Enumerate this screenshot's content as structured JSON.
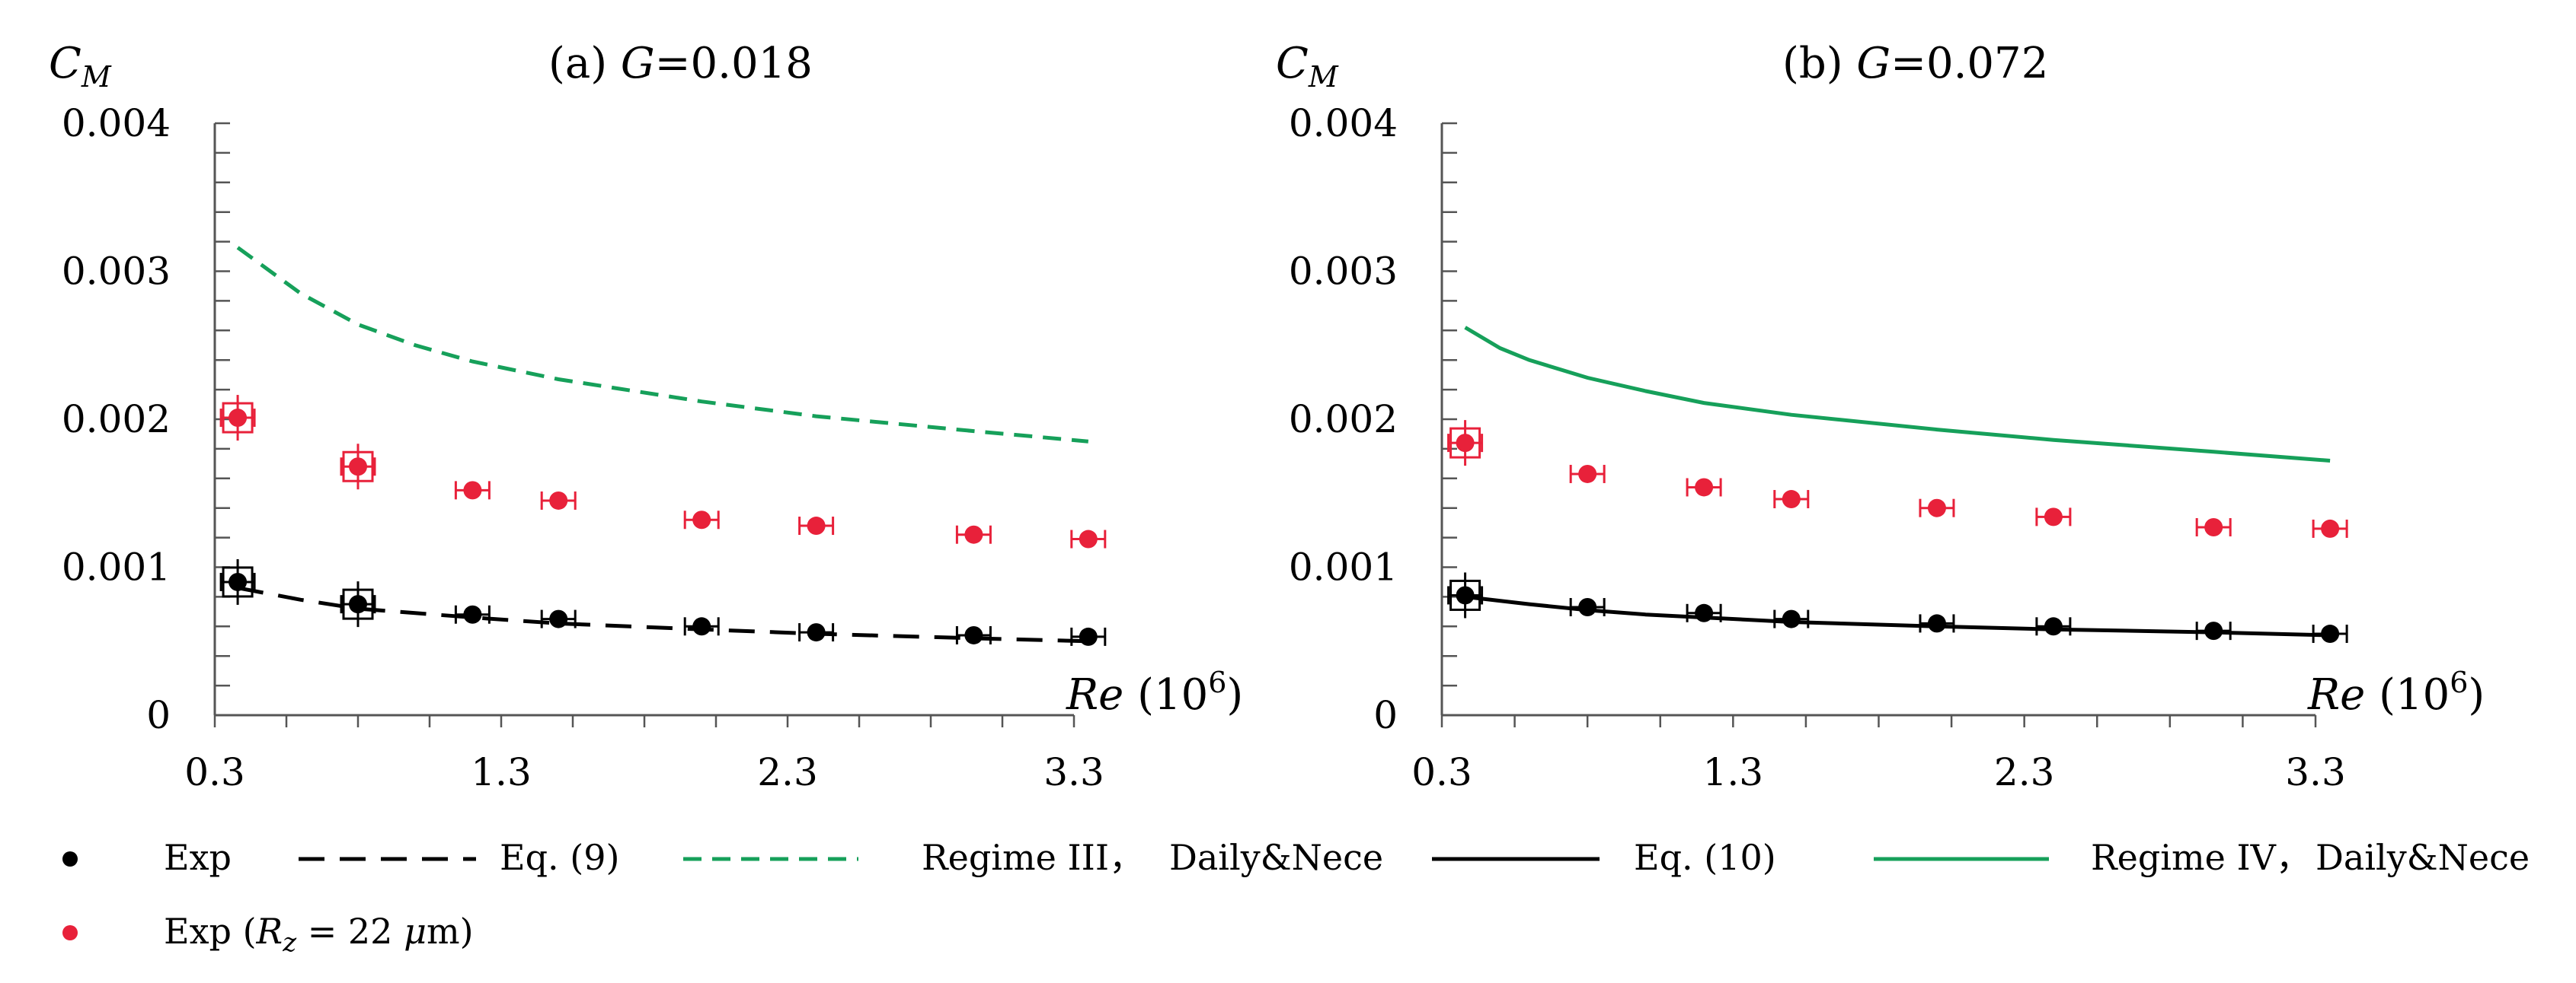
{
  "chart_data": [
    {
      "type": "scatter",
      "panel_label": "(a)",
      "title_var": "G",
      "title_value": "=0.018",
      "ylabel": "C",
      "ylabel_sub": "M",
      "xlabel": "Re",
      "xlabel_unit": "(10",
      "xlabel_exp": "6",
      "xlabel_close": ")",
      "xlim": [
        0.3,
        3.3
      ],
      "ylim": [
        0,
        0.004
      ],
      "xticks": [
        "0.3",
        "1.3",
        "2.3",
        "3.3"
      ],
      "yticks": [
        "0",
        "0.001",
        "0.002",
        "0.003",
        "0.004"
      ],
      "series": [
        {
          "name": "Exp",
          "kind": "marker",
          "color": "#000000",
          "x": [
            0.38,
            0.8,
            1.2,
            1.5,
            2.0,
            2.4,
            2.95,
            3.35
          ],
          "y": [
            0.0009,
            0.00075,
            0.00068,
            0.00065,
            0.0006,
            0.00056,
            0.00054,
            0.00053
          ],
          "boxed": [
            true,
            true,
            false,
            false,
            false,
            false,
            false,
            false
          ]
        },
        {
          "name": "Exp (Rz = 22 μm)",
          "kind": "marker",
          "color": "#e8213a",
          "x": [
            0.38,
            0.8,
            1.2,
            1.5,
            2.0,
            2.4,
            2.95,
            3.35
          ],
          "y": [
            0.00201,
            0.00168,
            0.00152,
            0.00145,
            0.00132,
            0.00128,
            0.00122,
            0.00119
          ],
          "boxed": [
            true,
            true,
            false,
            false,
            false,
            false,
            false,
            false
          ]
        },
        {
          "name": "Eq. (9)",
          "kind": "line",
          "dash": "long",
          "color": "#000000",
          "x": [
            0.38,
            0.6,
            0.8,
            1.0,
            1.2,
            1.5,
            2.0,
            2.4,
            2.95,
            3.35
          ],
          "y": [
            0.00086,
            0.00078,
            0.00072,
            0.00069,
            0.00066,
            0.00062,
            0.00058,
            0.00055,
            0.00052,
            0.0005
          ]
        },
        {
          "name": "Regime III， Daily&Nece",
          "kind": "line",
          "dash": "medium",
          "color": "#16a05a",
          "x": [
            0.38,
            0.6,
            0.8,
            1.0,
            1.2,
            1.5,
            2.0,
            2.4,
            2.95,
            3.35
          ],
          "y": [
            0.00316,
            0.00285,
            0.00264,
            0.0025,
            0.00239,
            0.00227,
            0.00212,
            0.00202,
            0.00192,
            0.00185
          ]
        }
      ]
    },
    {
      "type": "scatter",
      "panel_label": "(b)",
      "title_var": "G",
      "title_value": "=0.072",
      "ylabel": "C",
      "ylabel_sub": "M",
      "xlabel": "Re",
      "xlabel_unit": "(10",
      "xlabel_exp": "6",
      "xlabel_close": ")",
      "xlim": [
        0.3,
        3.3
      ],
      "ylim": [
        0,
        0.004
      ],
      "xticks": [
        "0.3",
        "1.3",
        "2.3",
        "3.3"
      ],
      "yticks": [
        "0",
        "0.001",
        "0.002",
        "0.003",
        "0.004"
      ],
      "series": [
        {
          "name": "Exp",
          "kind": "marker",
          "color": "#000000",
          "x": [
            0.38,
            0.8,
            1.2,
            1.5,
            2.0,
            2.4,
            2.95,
            3.35
          ],
          "y": [
            0.00081,
            0.00073,
            0.00069,
            0.00065,
            0.00062,
            0.0006,
            0.00057,
            0.00055
          ],
          "boxed": [
            true,
            false,
            false,
            false,
            false,
            false,
            false,
            false
          ]
        },
        {
          "name": "Exp (Rz = 22 μm)",
          "kind": "marker",
          "color": "#e8213a",
          "x": [
            0.38,
            0.8,
            1.2,
            1.5,
            2.0,
            2.4,
            2.95,
            3.35
          ],
          "y": [
            0.00184,
            0.00163,
            0.00154,
            0.00146,
            0.0014,
            0.00134,
            0.00127,
            0.00126
          ],
          "boxed": [
            true,
            false,
            false,
            false,
            false,
            false,
            false,
            false
          ]
        },
        {
          "name": "Eq. (10)",
          "kind": "line",
          "dash": "solid",
          "color": "#000000",
          "x": [
            0.38,
            0.6,
            0.8,
            1.0,
            1.2,
            1.5,
            2.0,
            2.4,
            2.95,
            3.35
          ],
          "y": [
            0.0008,
            0.00075,
            0.00071,
            0.00068,
            0.00066,
            0.00063,
            0.0006,
            0.00058,
            0.00056,
            0.00054
          ]
        },
        {
          "name": "Regime IV， Daily&Nece",
          "kind": "line",
          "dash": "solid",
          "color": "#16a05a",
          "x": [
            0.38,
            0.5,
            0.6,
            0.8,
            1.0,
            1.2,
            1.5,
            2.0,
            2.4,
            2.95,
            3.35
          ],
          "y": [
            0.00262,
            0.00248,
            0.0024,
            0.00228,
            0.00219,
            0.00211,
            0.00203,
            0.00193,
            0.00186,
            0.00178,
            0.00172
          ]
        }
      ]
    }
  ],
  "legend": {
    "items": [
      {
        "label": "Exp",
        "kind": "marker",
        "color": "#000000"
      },
      {
        "label": "Eq. (9)",
        "kind": "line",
        "dash": "long",
        "color": "#000000"
      },
      {
        "label": "Regime III，",
        "label2": "Daily&Nece",
        "kind": "line",
        "dash": "medium",
        "color": "#16a05a"
      },
      {
        "label": "Eq. (10)",
        "kind": "line",
        "dash": "solid",
        "color": "#000000"
      },
      {
        "label": "Regime IV，",
        "label2": "Daily&Nece",
        "kind": "line",
        "dash": "solid",
        "color": "#16a05a"
      },
      {
        "label": "Exp (",
        "label_var": "R",
        "label_sub": "z",
        "label_eq": " = 22 ",
        "label_mu": "μ",
        "label_end": "m)",
        "kind": "marker",
        "color": "#e8213a"
      }
    ]
  }
}
